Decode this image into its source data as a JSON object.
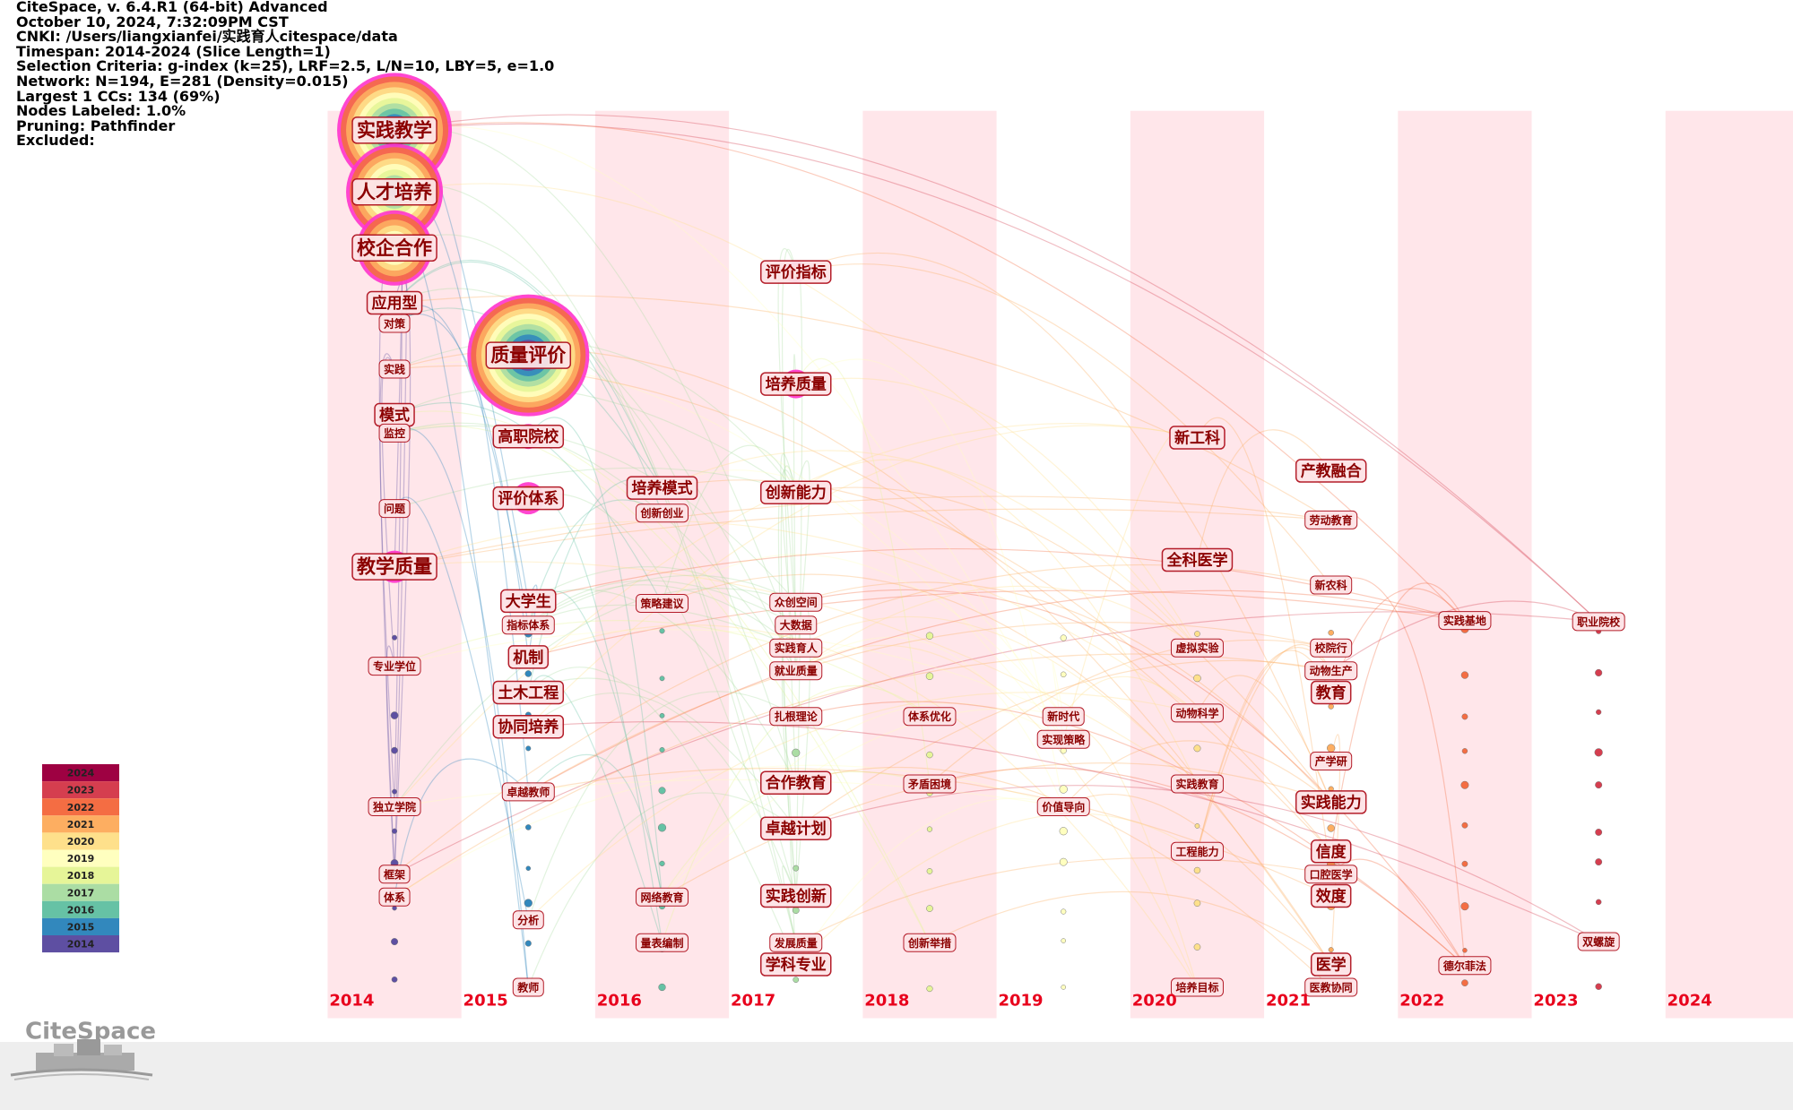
{
  "header": {
    "lines": [
      "CiteSpace, v. 6.4.R1 (64-bit) Advanced",
      "October 10, 2024, 7:32:09PM CST",
      "CNKI: /Users/liangxianfei/实践育人citespace/data",
      "Timespan: 2014-2024 (Slice Length=1)",
      "Selection Criteria: g-index (k=25), LRF=2.5, L/N=10, LBY=5, e=1.0",
      "Network: N=194, E=281 (Density=0.015)",
      "Largest 1 CCs: 134 (69%)",
      "Nodes Labeled: 1.0%",
      "Pruning: Pathfinder",
      "Excluded:"
    ]
  },
  "years": [
    "2014",
    "2015",
    "2016",
    "2017",
    "2018",
    "2019",
    "2020",
    "2021",
    "2022",
    "2023",
    "2024"
  ],
  "legend": {
    "years": [
      "2024",
      "2023",
      "2022",
      "2021",
      "2020",
      "2019",
      "2018",
      "2017",
      "2016",
      "2015",
      "2014"
    ]
  },
  "logo": "CiteSpace",
  "nodes": [
    {
      "label": "实践教学"
    },
    {
      "label": "人才培养"
    },
    {
      "label": "校企合作"
    },
    {
      "label": "应用型"
    },
    {
      "label": "对策"
    },
    {
      "label": "实践"
    },
    {
      "label": "模式"
    },
    {
      "label": "监控"
    },
    {
      "label": "问题"
    },
    {
      "label": "教学质量"
    },
    {
      "label": "专业学位"
    },
    {
      "label": "独立学院"
    },
    {
      "label": "框架"
    },
    {
      "label": "体系"
    },
    {
      "label": "质量评价"
    },
    {
      "label": "高职院校"
    },
    {
      "label": "评价体系"
    },
    {
      "label": "大学生"
    },
    {
      "label": "指标体系"
    },
    {
      "label": "机制"
    },
    {
      "label": "土木工程"
    },
    {
      "label": "协同培养"
    },
    {
      "label": "卓越教师"
    },
    {
      "label": "分析"
    },
    {
      "label": "教师"
    },
    {
      "label": "培养模式"
    },
    {
      "label": "创新创业"
    },
    {
      "label": "策略建议"
    },
    {
      "label": "网络教育"
    },
    {
      "label": "量表编制"
    },
    {
      "label": "评价指标"
    },
    {
      "label": "培养质量"
    },
    {
      "label": "创新能力"
    },
    {
      "label": "众创空间"
    },
    {
      "label": "大数据"
    },
    {
      "label": "实践育人"
    },
    {
      "label": "就业质量"
    },
    {
      "label": "扎根理论"
    },
    {
      "label": "合作教育"
    },
    {
      "label": "卓越计划"
    },
    {
      "label": "实践创新"
    },
    {
      "label": "发展质量"
    },
    {
      "label": "学科专业"
    },
    {
      "label": "体系优化"
    },
    {
      "label": "矛盾困境"
    },
    {
      "label": "创新举措"
    },
    {
      "label": "新时代"
    },
    {
      "label": "实现策略"
    },
    {
      "label": "价值导向"
    },
    {
      "label": "新工科"
    },
    {
      "label": "全科医学"
    },
    {
      "label": "虚拟实验"
    },
    {
      "label": "动物科学"
    },
    {
      "label": "实践教育"
    },
    {
      "label": "工程能力"
    },
    {
      "label": "培养目标"
    },
    {
      "label": "产教融合"
    },
    {
      "label": "劳动教育"
    },
    {
      "label": "新农科"
    },
    {
      "label": "校院行"
    },
    {
      "label": "动物生产"
    },
    {
      "label": "教育"
    },
    {
      "label": "产学研"
    },
    {
      "label": "实践能力"
    },
    {
      "label": "信度"
    },
    {
      "label": "口腔医学"
    },
    {
      "label": "效度"
    },
    {
      "label": "医学"
    },
    {
      "label": "医教协同"
    },
    {
      "label": "实践基地"
    },
    {
      "label": "德尔菲法"
    },
    {
      "label": "职业院校"
    },
    {
      "label": "双螺旋"
    }
  ]
}
